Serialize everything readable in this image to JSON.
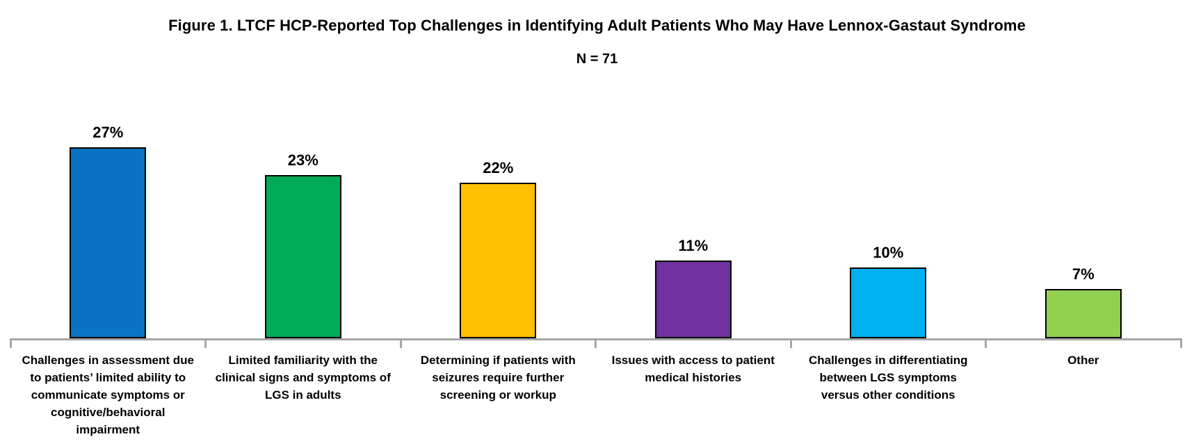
{
  "figure": {
    "title": "Figure 1. LTCF HCP-Reported Top Challenges in Identifying Adult Patients Who May Have Lennox-Gastaut Syndrome",
    "sample_size_label": "N = 71"
  },
  "chart_data": {
    "type": "bar",
    "title": "Figure 1. LTCF HCP-Reported Top Challenges in Identifying Adult Patients Who May Have Lennox-Gastaut Syndrome",
    "subtitle": "N = 71",
    "xlabel": "",
    "ylabel": "",
    "ylim": [
      0,
      30
    ],
    "grid": false,
    "legend": "none",
    "axis_color": "#A6A6A6",
    "bar_border_color": "#000000",
    "categories": [
      "Challenges in assessment due to patients’ limited ability to communicate symptoms or cognitive/behavioral impairment",
      "Limited familiarity with the clinical signs and symptoms of LGS in adults",
      "Determining if patients with seizures require further screening or workup",
      "Issues with access to patient medical histories",
      "Challenges in differentiating between LGS symptoms versus other conditions",
      "Other"
    ],
    "category_lines": [
      [
        "Challenges in assessment due",
        "to patients’ limited ability to",
        "communicate symptoms or",
        "cognitive/behavioral",
        "impairment"
      ],
      [
        "Limited familiarity with the",
        "clinical signs and symptoms of",
        "LGS in adults"
      ],
      [
        "Determining if patients with",
        "seizures require further",
        "screening or workup"
      ],
      [
        "Issues with access to patient",
        "medical histories"
      ],
      [
        "Challenges in differentiating",
        "between LGS symptoms",
        "versus other conditions"
      ],
      [
        "Other"
      ]
    ],
    "values": [
      27,
      23,
      22,
      11,
      10,
      7
    ],
    "value_labels": [
      "27%",
      "23%",
      "22%",
      "11%",
      "10%",
      "7%"
    ],
    "bar_colors": [
      "#0A72C2",
      "#00AB55",
      "#FFC000",
      "#7030A0",
      "#00B0F0",
      "#92D050"
    ]
  }
}
